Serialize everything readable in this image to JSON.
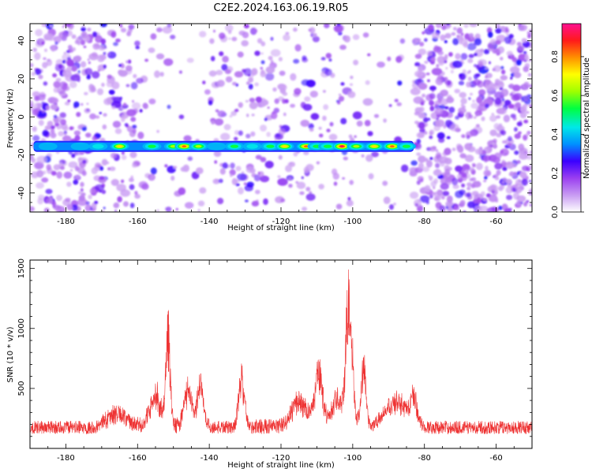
{
  "title": "C2E2.2024.163.06.19.R05",
  "chart_data": [
    {
      "type": "heatmap",
      "name": "spectrogram",
      "xlabel": "Height of straight line (km)",
      "ylabel": "Frequency (Hz)",
      "xlim": [
        -190,
        -50
      ],
      "ylim": [
        -50,
        49
      ],
      "xticks": [
        -180,
        -160,
        -140,
        -120,
        -100,
        -80,
        -60
      ],
      "yticks": [
        -40,
        -20,
        0,
        20,
        40
      ],
      "colorbar": {
        "label": "Normalized spectral amplitude",
        "range": [
          0,
          0.97
        ],
        "ticks": [
          "0.0",
          "0.2",
          "0.4",
          "0.6",
          "0.8"
        ],
        "tick_values": [
          0.0,
          0.2,
          0.4,
          0.6,
          0.8
        ],
        "colors": [
          "#ffffff",
          "#c89bf2",
          "#9a3ff0",
          "#3a00ff",
          "#0090ff",
          "#00e8e8",
          "#00ff40",
          "#a0ff00",
          "#ffff00",
          "#ff9000",
          "#ff1a1a",
          "#ff1090"
        ]
      },
      "signal_band": {
        "frequency_hz": -15.5,
        "height_start_km": -189,
        "height_end_km": -83,
        "hotspots": [
          {
            "x": -185,
            "a": 0.25
          },
          {
            "x": -176,
            "a": 0.3
          },
          {
            "x": -171,
            "a": 0.45
          },
          {
            "x": -165,
            "a": 0.75
          },
          {
            "x": -156,
            "a": 0.6
          },
          {
            "x": -150,
            "a": 0.65
          },
          {
            "x": -147,
            "a": 0.9
          },
          {
            "x": -143,
            "a": 0.7
          },
          {
            "x": -138,
            "a": 0.4
          },
          {
            "x": -133,
            "a": 0.6
          },
          {
            "x": -128,
            "a": 0.45
          },
          {
            "x": -123,
            "a": 0.55
          },
          {
            "x": -119,
            "a": 0.75
          },
          {
            "x": -113,
            "a": 0.85
          },
          {
            "x": -110,
            "a": 0.6
          },
          {
            "x": -107,
            "a": 0.55
          },
          {
            "x": -103,
            "a": 0.95
          },
          {
            "x": -99,
            "a": 0.7
          },
          {
            "x": -94,
            "a": 0.8
          },
          {
            "x": -89,
            "a": 0.9
          },
          {
            "x": -85,
            "a": 0.6
          }
        ]
      },
      "noise_density_by_height": [
        {
          "from": -190,
          "to": -175,
          "density": 0.75
        },
        {
          "from": -175,
          "to": -160,
          "density": 0.55
        },
        {
          "from": -160,
          "to": -140,
          "density": 0.12
        },
        {
          "from": -140,
          "to": -118,
          "density": 0.35
        },
        {
          "from": -118,
          "to": -100,
          "density": 0.25
        },
        {
          "from": -100,
          "to": -83,
          "density": 0.1
        },
        {
          "from": -83,
          "to": -50,
          "density": 0.9
        }
      ]
    },
    {
      "type": "line",
      "name": "snr",
      "xlabel": "Height of straight line (km)",
      "ylabel": "SNR (10 * v/v)",
      "xlim": [
        -190,
        -50
      ],
      "ylim": [
        0,
        1570
      ],
      "xticks": [
        -180,
        -160,
        -140,
        -120,
        -100,
        -80,
        -60
      ],
      "yticks": [
        500,
        1000,
        1500
      ],
      "color": "#ee3333",
      "baseline": 160,
      "noise_amplitude": 110,
      "peaks": [
        {
          "x": -166,
          "height": 120,
          "width": 2.5
        },
        {
          "x": -155,
          "height": 300,
          "width": 1.5
        },
        {
          "x": -151.5,
          "height": 880,
          "width": 0.6
        },
        {
          "x": -146,
          "height": 350,
          "width": 1.0
        },
        {
          "x": -142.5,
          "height": 420,
          "width": 0.8
        },
        {
          "x": -131,
          "height": 470,
          "width": 0.8
        },
        {
          "x": -115,
          "height": 250,
          "width": 2.0
        },
        {
          "x": -109.5,
          "height": 500,
          "width": 1.2
        },
        {
          "x": -104.5,
          "height": 300,
          "width": 1.2
        },
        {
          "x": -101,
          "height": 1280,
          "width": 0.9
        },
        {
          "x": -97,
          "height": 600,
          "width": 0.7
        },
        {
          "x": -88,
          "height": 250,
          "width": 3.0
        },
        {
          "x": -83,
          "height": 230,
          "width": 1.0
        }
      ]
    }
  ]
}
